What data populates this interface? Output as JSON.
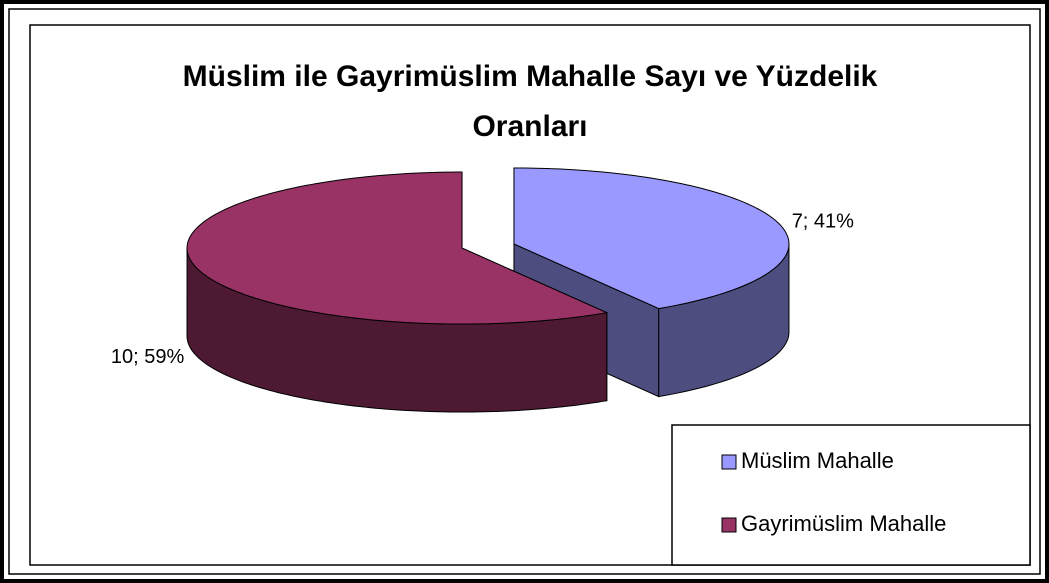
{
  "chart_data": {
    "type": "pie",
    "title": "Müslim ile Gayrimüslim Mahalle Sayı ve Yüzdelik Oranları",
    "categories": [
      "Müslim Mahalle",
      "Gayrimüslim Mahalle"
    ],
    "values": [
      7,
      10
    ],
    "value_labels": [
      "7; 41%",
      "10; 59%"
    ],
    "colors": [
      "#9999ff",
      "#993366"
    ],
    "side_colors": [
      "#4d4d80",
      "#4d1933"
    ],
    "legend": "bottom-right"
  }
}
